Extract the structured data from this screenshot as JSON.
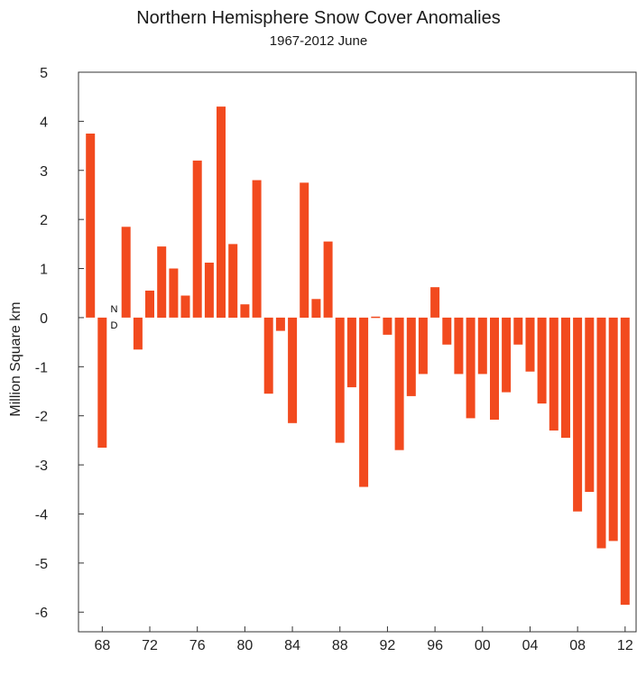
{
  "chart_data": {
    "type": "bar",
    "title": "Northern Hemisphere Snow Cover Anomalies",
    "subtitle": "1967-2012 June",
    "ylabel": "Million Square km",
    "xlabel": "",
    "ylim": [
      -6.4,
      5
    ],
    "yticks": [
      5,
      4,
      3,
      2,
      1,
      0,
      -1,
      -2,
      -3,
      -4,
      -5,
      -6
    ],
    "xlim": [
      1966,
      2013
    ],
    "xticks": [
      {
        "year": 1968,
        "label": "68"
      },
      {
        "year": 1972,
        "label": "72"
      },
      {
        "year": 1976,
        "label": "76"
      },
      {
        "year": 1980,
        "label": "80"
      },
      {
        "year": 1984,
        "label": "84"
      },
      {
        "year": 1988,
        "label": "88"
      },
      {
        "year": 1992,
        "label": "92"
      },
      {
        "year": 1996,
        "label": "96"
      },
      {
        "year": 2000,
        "label": "00"
      },
      {
        "year": 2004,
        "label": "04"
      },
      {
        "year": 2008,
        "label": "08"
      },
      {
        "year": 2012,
        "label": "12"
      }
    ],
    "bar_color": "#f24a1e",
    "no_data": {
      "year": 1969,
      "label_top": "N",
      "label_bottom": "D"
    },
    "years": [
      1967,
      1968,
      1969,
      1970,
      1971,
      1972,
      1973,
      1974,
      1975,
      1976,
      1977,
      1978,
      1979,
      1980,
      1981,
      1982,
      1983,
      1984,
      1985,
      1986,
      1987,
      1988,
      1989,
      1990,
      1991,
      1992,
      1993,
      1994,
      1995,
      1996,
      1997,
      1998,
      1999,
      2000,
      2001,
      2002,
      2003,
      2004,
      2005,
      2006,
      2007,
      2008,
      2009,
      2010,
      2011,
      2012
    ],
    "values": [
      3.75,
      -2.65,
      null,
      1.85,
      -0.65,
      0.55,
      1.45,
      1.0,
      0.45,
      3.2,
      1.12,
      4.3,
      1.5,
      0.27,
      2.8,
      -1.55,
      -0.27,
      -2.15,
      2.75,
      0.38,
      1.55,
      -2.55,
      -1.42,
      -3.45,
      0.02,
      -0.35,
      -2.7,
      -1.6,
      -1.15,
      0.62,
      -0.55,
      -1.15,
      -2.05,
      -1.15,
      -2.08,
      -1.52,
      -0.55,
      -1.1,
      -1.75,
      -2.3,
      -2.45,
      -3.95,
      -3.55,
      -4.7,
      -4.55,
      -5.85
    ]
  }
}
